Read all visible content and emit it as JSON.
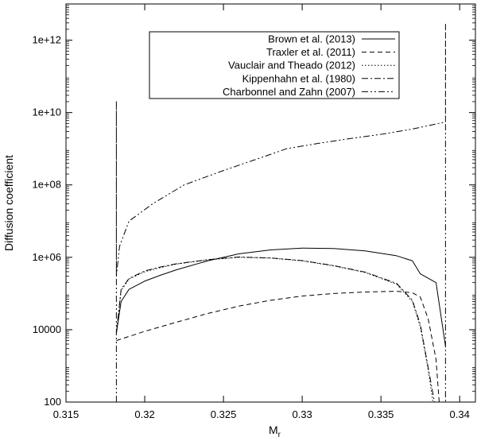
{
  "chart_data": {
    "type": "line",
    "xlabel": "M",
    "xlabel_sub": "r",
    "ylabel": "Diffusion coefficient",
    "xlim": [
      0.315,
      0.341
    ],
    "ylim": [
      100,
      10000000000000.0
    ],
    "yscale": "log",
    "grid": false,
    "legend_position": "top-center",
    "x_ticks": [
      {
        "value": 0.315,
        "label": "0.315"
      },
      {
        "value": 0.32,
        "label": "0.32"
      },
      {
        "value": 0.325,
        "label": "0.325"
      },
      {
        "value": 0.33,
        "label": "0.33"
      },
      {
        "value": 0.335,
        "label": "0.335"
      },
      {
        "value": 0.34,
        "label": "0.34"
      }
    ],
    "y_ticks": [
      {
        "value": 100,
        "label": "100"
      },
      {
        "value": 10000,
        "label": "10000"
      },
      {
        "value": 1000000,
        "label": "1e+06"
      },
      {
        "value": 100000000,
        "label": "1e+08"
      },
      {
        "value": 10000000000,
        "label": "1e+10"
      },
      {
        "value": 1000000000000,
        "label": "1e+12"
      }
    ],
    "series": [
      {
        "name": "Brown et al. (2013)",
        "dash": "solid",
        "x": [
          0.3182,
          0.3185,
          0.319,
          0.32,
          0.321,
          0.322,
          0.324,
          0.326,
          0.328,
          0.33,
          0.332,
          0.334,
          0.336,
          0.337,
          0.3375,
          0.3385,
          0.3391
        ],
        "y": [
          8000,
          60000,
          130000,
          220000,
          320000,
          450000,
          800000,
          1250000,
          1600000,
          1800000,
          1750000,
          1500000,
          1100000,
          800000,
          350000,
          200000,
          3500
        ]
      },
      {
        "name": "Traxler et al. (2011)",
        "dash": "6,4",
        "x": [
          0.3182,
          0.32,
          0.322,
          0.324,
          0.326,
          0.328,
          0.33,
          0.332,
          0.334,
          0.336,
          0.337,
          0.3375,
          0.338,
          0.3385,
          0.3387
        ],
        "y": [
          5000,
          9000,
          16000,
          28000,
          45000,
          65000,
          85000,
          100000,
          110000,
          115000,
          105000,
          80000,
          20000,
          1500,
          100
        ]
      },
      {
        "name": "Vauclair and Theado (2012)",
        "dash": "1.5,2.5",
        "x": [
          0.3182,
          0.3185,
          0.319,
          0.32,
          0.321,
          0.322,
          0.324,
          0.326,
          0.328,
          0.33,
          0.332,
          0.334,
          0.336,
          0.337,
          0.3375,
          0.338,
          0.3383
        ],
        "y": [
          8000,
          120000,
          250000,
          400000,
          520000,
          650000,
          850000,
          1000000,
          950000,
          800000,
          580000,
          380000,
          180000,
          60000,
          12000,
          800,
          100
        ]
      },
      {
        "name": "Kippenhahn et al. (1980)",
        "dash": "8,3,2,3",
        "x": [
          0.3182,
          0.3185,
          0.319,
          0.32,
          0.321,
          0.322,
          0.324,
          0.326,
          0.328,
          0.33,
          0.332,
          0.334,
          0.336,
          0.337,
          0.3375,
          0.338,
          0.3384
        ],
        "y": [
          8000,
          130000,
          260000,
          420000,
          540000,
          660000,
          860000,
          1020000,
          960000,
          810000,
          590000,
          390000,
          190000,
          65000,
          14000,
          900,
          100
        ]
      },
      {
        "name": "Charbonnel and Zahn (2007)",
        "dash": "8,3,2,3,2,3",
        "x": [
          0.3182,
          0.3182,
          0.3182,
          0.3184,
          0.319,
          0.3205,
          0.3225,
          0.325,
          0.328,
          0.329,
          0.331,
          0.333,
          0.335,
          0.337,
          0.3391,
          0.3391,
          0.3391
        ],
        "y": [
          100,
          20000000000.0,
          300000,
          2000000,
          10000000,
          30000000,
          100000000,
          250000000,
          700000000,
          1000000000,
          1400000000,
          1900000000,
          2500000000,
          3500000000,
          5500000000,
          3000000000000.0,
          100
        ]
      }
    ]
  }
}
